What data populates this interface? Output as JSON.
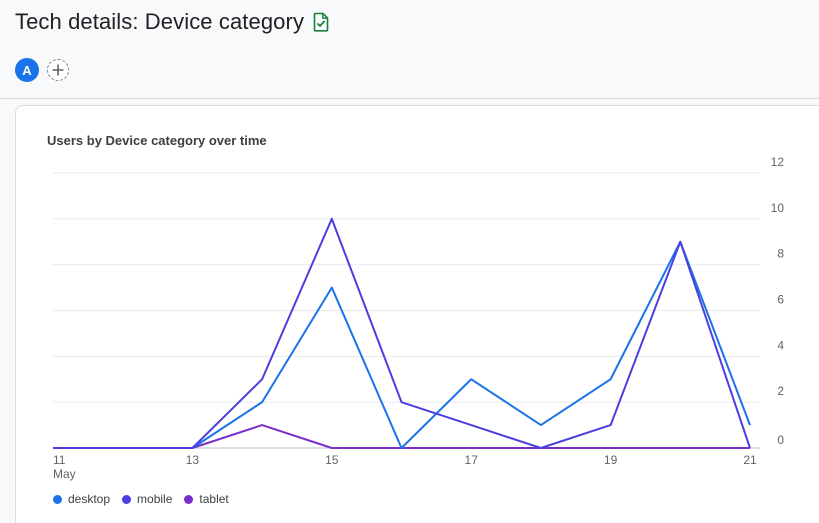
{
  "header": {
    "title": "Tech details: Device category",
    "avatar_letter": "A"
  },
  "icons": {
    "title_icon": "verified-doc-icon",
    "add_compare": "plus-icon"
  },
  "card": {
    "title": "Users by Device category over time"
  },
  "colors": {
    "desktop": "#1a73e8",
    "mobile": "#4b3fe0",
    "tablet": "#7b2fc9",
    "grid": "#e8eaed",
    "avatar": "#1a73e8",
    "title_icon": "#188038"
  },
  "chart_data": {
    "type": "line",
    "x": [
      11,
      12,
      13,
      14,
      15,
      16,
      17,
      18,
      19,
      20,
      21
    ],
    "x_ticks": [
      {
        "value": 11,
        "label": "11",
        "sublabel": "May"
      },
      {
        "value": 13,
        "label": "13"
      },
      {
        "value": 15,
        "label": "15"
      },
      {
        "value": 17,
        "label": "17"
      },
      {
        "value": 19,
        "label": "19"
      },
      {
        "value": 21,
        "label": "21"
      }
    ],
    "y_ticks": [
      0,
      2,
      4,
      6,
      8,
      10,
      12
    ],
    "ylim": [
      0,
      12
    ],
    "xlim": [
      11,
      21
    ],
    "grid": true,
    "y_axis_side": "right",
    "legend_position": "bottom-left",
    "series": [
      {
        "name": "desktop",
        "key": "desktop",
        "values": [
          0,
          0,
          0,
          2,
          7,
          0,
          3,
          1,
          3,
          9,
          1
        ]
      },
      {
        "name": "mobile",
        "key": "mobile",
        "values": [
          0,
          0,
          0,
          3,
          10,
          2,
          1,
          0,
          1,
          9,
          0
        ]
      },
      {
        "name": "tablet",
        "key": "tablet",
        "values": [
          0,
          0,
          0,
          1,
          0,
          0,
          0,
          0,
          0,
          0,
          0
        ]
      }
    ]
  }
}
